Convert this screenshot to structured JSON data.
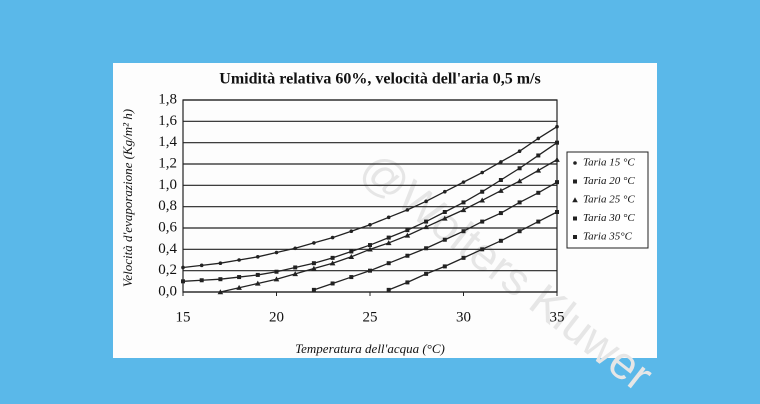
{
  "chart_data": {
    "type": "line",
    "title": "Umidità relativa 60%, velocità dell'aria 0,5 m/s",
    "xlabel": "Temperatura dell'acqua (°C)",
    "ylabel": "Velocità d'evaporazione (Kg/m² h)",
    "watermark": "@Wolters Kluwer",
    "x": [
      15,
      16,
      17,
      18,
      19,
      20,
      21,
      22,
      23,
      24,
      25,
      26,
      27,
      28,
      29,
      30,
      31,
      32,
      33,
      34,
      35
    ],
    "series": [
      {
        "name": "Taria 15 °C",
        "color": "#222222",
        "marker": "circle",
        "values": [
          0.23,
          0.25,
          0.27,
          0.3,
          0.33,
          0.37,
          0.41,
          0.46,
          0.51,
          0.57,
          0.63,
          0.7,
          0.77,
          0.85,
          0.94,
          1.03,
          1.12,
          1.22,
          1.32,
          1.44,
          1.55
        ]
      },
      {
        "name": "Taria 20 °C",
        "color": "#222222",
        "marker": "square",
        "values": [
          0.1,
          0.11,
          0.12,
          0.14,
          0.16,
          0.19,
          0.23,
          0.27,
          0.32,
          0.38,
          0.44,
          0.51,
          0.58,
          0.66,
          0.75,
          0.84,
          0.94,
          1.05,
          1.16,
          1.28,
          1.4
        ]
      },
      {
        "name": "Taria 25 °C",
        "color": "#222222",
        "marker": "triangle",
        "values": [
          null,
          null,
          0,
          0.04,
          0.08,
          0.12,
          0.17,
          0.22,
          0.27,
          0.33,
          0.4,
          0.46,
          0.53,
          0.61,
          0.69,
          0.77,
          0.86,
          0.95,
          1.04,
          1.14,
          1.24
        ]
      },
      {
        "name": "Taria 30 °C",
        "color": "#222222",
        "marker": "square",
        "values": [
          null,
          null,
          null,
          null,
          null,
          null,
          null,
          0.02,
          0.08,
          0.14,
          0.2,
          0.27,
          0.34,
          0.41,
          0.49,
          0.57,
          0.66,
          0.74,
          0.84,
          0.93,
          1.03
        ]
      },
      {
        "name": "Taria 35°C",
        "color": "#222222",
        "marker": "square",
        "values": [
          null,
          null,
          null,
          null,
          null,
          null,
          null,
          null,
          null,
          null,
          null,
          0.02,
          0.09,
          0.17,
          0.24,
          0.32,
          0.4,
          0.48,
          0.57,
          0.66,
          0.75
        ]
      }
    ],
    "xlim": [
      15,
      35
    ],
    "xticks": [
      15,
      20,
      25,
      30,
      35
    ],
    "ylim": [
      0,
      1.8
    ],
    "yticks": [
      {
        "value": 0,
        "label": "0,0"
      },
      {
        "value": 0.2,
        "label": "0,2"
      },
      {
        "value": 0.4,
        "label": "0,4"
      },
      {
        "value": 0.6,
        "label": "0,6"
      },
      {
        "value": 0.8,
        "label": "0,8"
      },
      {
        "value": 1.0,
        "label": "1,0"
      },
      {
        "value": 1.2,
        "label": "1,2"
      },
      {
        "value": 1.4,
        "label": "1,4"
      },
      {
        "value": 1.6,
        "label": "1,6"
      },
      {
        "value": 1.8,
        "label": "1,8"
      }
    ],
    "grid": true,
    "legend": "right"
  }
}
